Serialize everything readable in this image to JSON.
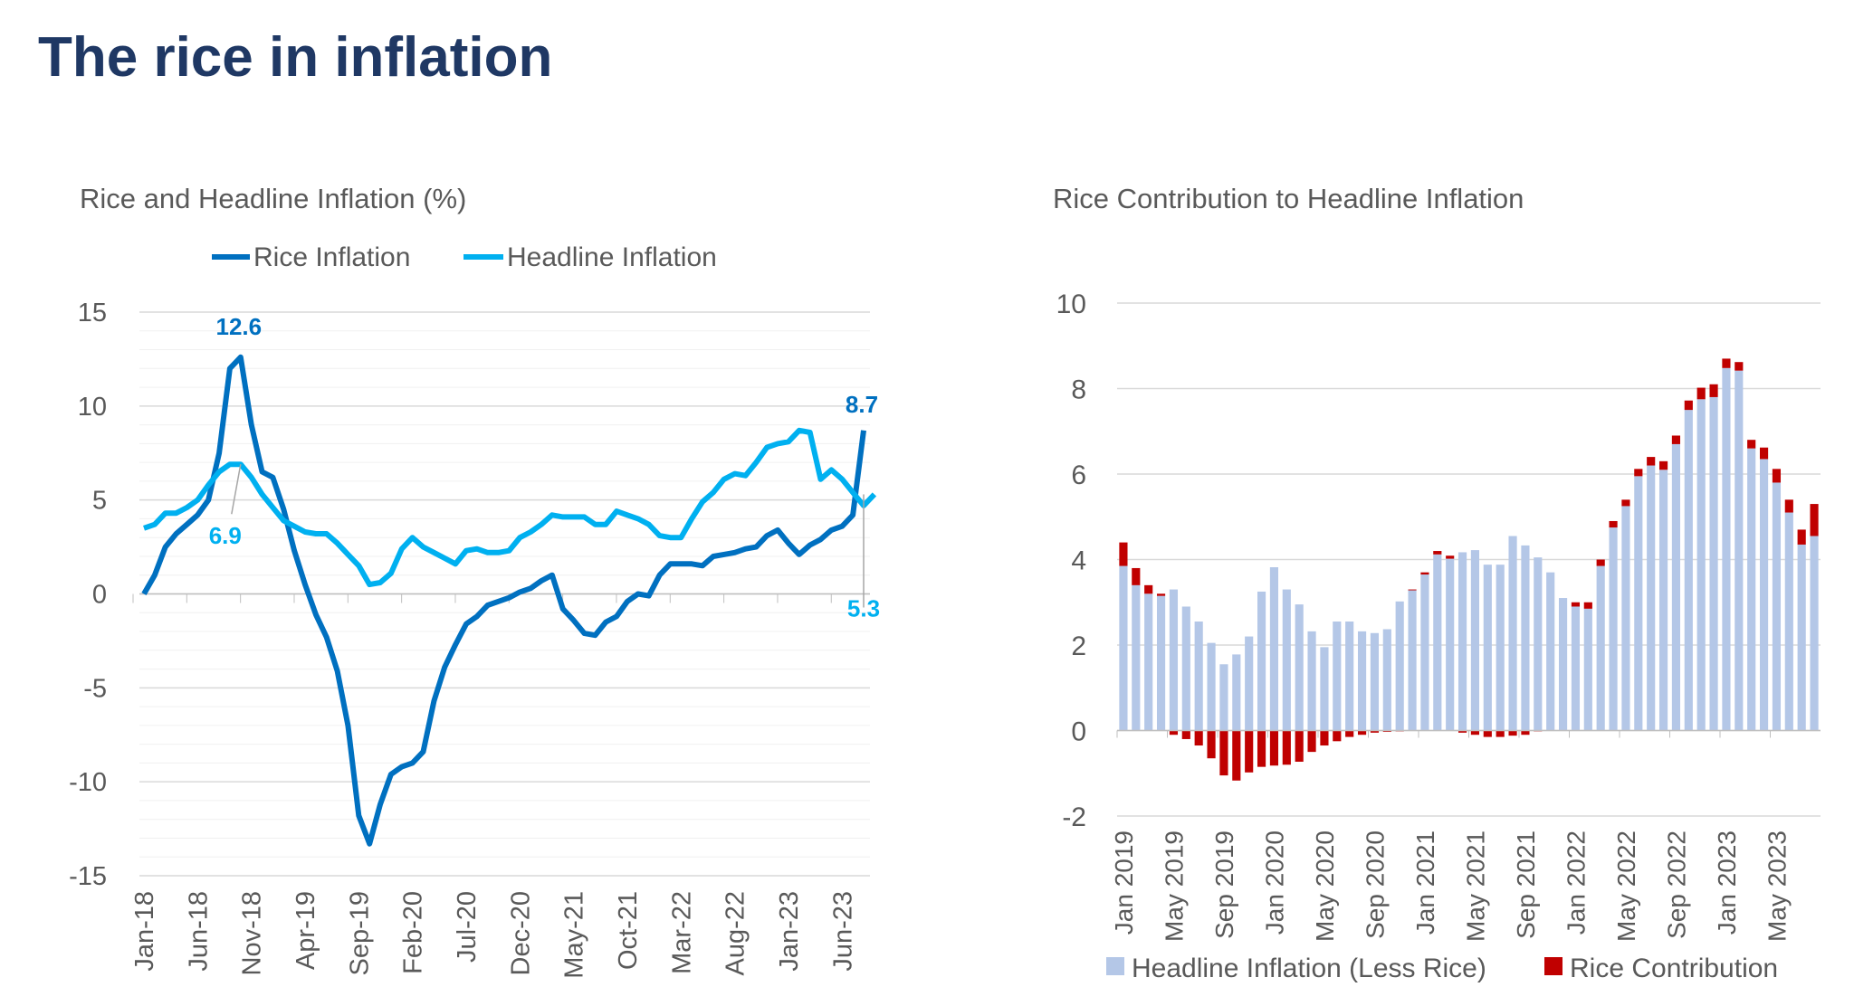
{
  "page_title": "The rice in inflation",
  "colors": {
    "title": "#1f3864",
    "rice": "#0070c0",
    "headline": "#00b0f0",
    "bar_base": "#b4c7e7",
    "bar_rice": "#c00000"
  },
  "chart_data": [
    {
      "type": "line",
      "title": "Rice and Headline Inflation (%)",
      "xlabel": "",
      "ylabel": "",
      "ylim": [
        -15,
        15
      ],
      "yticks": [
        15,
        10,
        5,
        0,
        -5,
        -10,
        -15
      ],
      "grid": true,
      "legend": "top",
      "x_tick_labels": [
        "Jan-18",
        "Jun-18",
        "Nov-18",
        "Apr-19",
        "Sep-19",
        "Feb-20",
        "Jul-20",
        "Dec-20",
        "May-21",
        "Oct-21",
        "Mar-22",
        "Aug-22",
        "Jan-23",
        "Jun-23"
      ],
      "x_range": [
        "Jan-18",
        "Aug-23"
      ],
      "series": [
        {
          "name": "Rice Inflation",
          "color": "#0070c0",
          "values": [
            0.0,
            1.0,
            2.5,
            3.2,
            3.7,
            4.2,
            5.0,
            7.5,
            12.0,
            12.6,
            9.0,
            6.5,
            6.2,
            4.5,
            2.3,
            0.5,
            -1.1,
            -2.3,
            -4.1,
            -7.0,
            -11.8,
            -13.3,
            -11.2,
            -9.6,
            -9.2,
            -9.0,
            -8.4,
            -5.7,
            -3.9,
            -2.7,
            -1.6,
            -1.2,
            -0.6,
            -0.4,
            -0.2,
            0.1,
            0.3,
            0.7,
            1.0,
            -0.8,
            -1.4,
            -2.1,
            -2.2,
            -1.5,
            -1.2,
            -0.4,
            0.0,
            -0.1,
            1.0,
            1.6,
            1.6,
            1.6,
            1.5,
            2.0,
            2.1,
            2.2,
            2.4,
            2.5,
            3.1,
            3.4,
            2.7,
            2.1,
            2.6,
            2.9,
            3.4,
            3.6,
            4.2,
            8.7
          ]
        },
        {
          "name": "Headline Inflation",
          "color": "#00b0f0",
          "values": [
            3.5,
            3.7,
            4.3,
            4.3,
            4.6,
            5.0,
            5.8,
            6.5,
            6.9,
            6.9,
            6.2,
            5.3,
            4.6,
            3.9,
            3.6,
            3.3,
            3.2,
            3.2,
            2.7,
            2.1,
            1.5,
            0.5,
            0.6,
            1.1,
            2.4,
            3.0,
            2.5,
            2.2,
            1.9,
            1.6,
            2.3,
            2.4,
            2.2,
            2.2,
            2.3,
            3.0,
            3.3,
            3.7,
            4.2,
            4.1,
            4.1,
            4.1,
            3.7,
            3.7,
            4.4,
            4.2,
            4.0,
            3.7,
            3.1,
            3.0,
            3.0,
            4.0,
            4.9,
            5.4,
            6.1,
            6.4,
            6.3,
            7.0,
            7.8,
            8.0,
            8.1,
            8.7,
            8.6,
            6.1,
            6.6,
            6.1,
            5.4,
            4.7,
            5.3
          ]
        }
      ],
      "annotations": [
        {
          "series": 0,
          "label": "12.6",
          "index": 9
        },
        {
          "series": 1,
          "label": "6.9",
          "index": 9
        },
        {
          "series": 0,
          "label": "8.7",
          "index": 67
        },
        {
          "series": 1,
          "label": "5.3",
          "index": 67
        }
      ]
    },
    {
      "type": "bar",
      "stacked": true,
      "title": "Rice Contribution to Headline Inflation",
      "xlabel": "",
      "ylabel": "",
      "ylim": [
        -2,
        10
      ],
      "yticks": [
        10,
        8,
        6,
        4,
        2,
        0,
        -2
      ],
      "grid": true,
      "legend": "bottom",
      "x_tick_labels": [
        "Jan 2019",
        "May 2019",
        "Sep 2019",
        "Jan 2020",
        "May 2020",
        "Sep 2020",
        "Jan 2021",
        "May 2021",
        "Sep 2021",
        "Jan 2022",
        "May 2022",
        "Sep 2022",
        "Jan 2023",
        "May 2023"
      ],
      "x_range": [
        "Jan 2019",
        "Aug 2023"
      ],
      "series": [
        {
          "name": "Headline Inflation (Less Rice)",
          "color": "#b4c7e7",
          "values": [
            3.85,
            3.4,
            3.2,
            3.15,
            3.3,
            2.9,
            2.55,
            2.05,
            1.55,
            1.78,
            2.2,
            3.25,
            3.82,
            3.3,
            2.95,
            2.32,
            1.95,
            2.55,
            2.55,
            2.32,
            2.28,
            2.37,
            3.02,
            3.28,
            3.65,
            4.12,
            4.02,
            4.17,
            4.22,
            3.88,
            3.88,
            4.55,
            4.33,
            4.05,
            3.7,
            3.1,
            2.9,
            2.85,
            3.85,
            4.75,
            5.25,
            5.95,
            6.2,
            6.1,
            6.7,
            7.5,
            7.75,
            7.8,
            8.48,
            8.42,
            6.6,
            6.35,
            5.8,
            5.1,
            4.35,
            4.55
          ]
        },
        {
          "name": "Rice Contribution",
          "color": "#c00000",
          "values": [
            0.55,
            0.4,
            0.2,
            0.05,
            -0.1,
            -0.2,
            -0.35,
            -0.65,
            -1.05,
            -1.17,
            -0.98,
            -0.85,
            -0.82,
            -0.8,
            -0.73,
            -0.5,
            -0.35,
            -0.25,
            -0.15,
            -0.1,
            -0.05,
            -0.03,
            -0.02,
            0.02,
            0.05,
            0.08,
            0.07,
            -0.05,
            -0.1,
            -0.15,
            -0.15,
            -0.12,
            -0.1,
            -0.02,
            0,
            0,
            0.1,
            0.15,
            0.15,
            0.15,
            0.15,
            0.17,
            0.2,
            0.2,
            0.2,
            0.22,
            0.27,
            0.3,
            0.22,
            0.2,
            0.2,
            0.27,
            0.32,
            0.3,
            0.35,
            0.75
          ]
        }
      ]
    }
  ]
}
